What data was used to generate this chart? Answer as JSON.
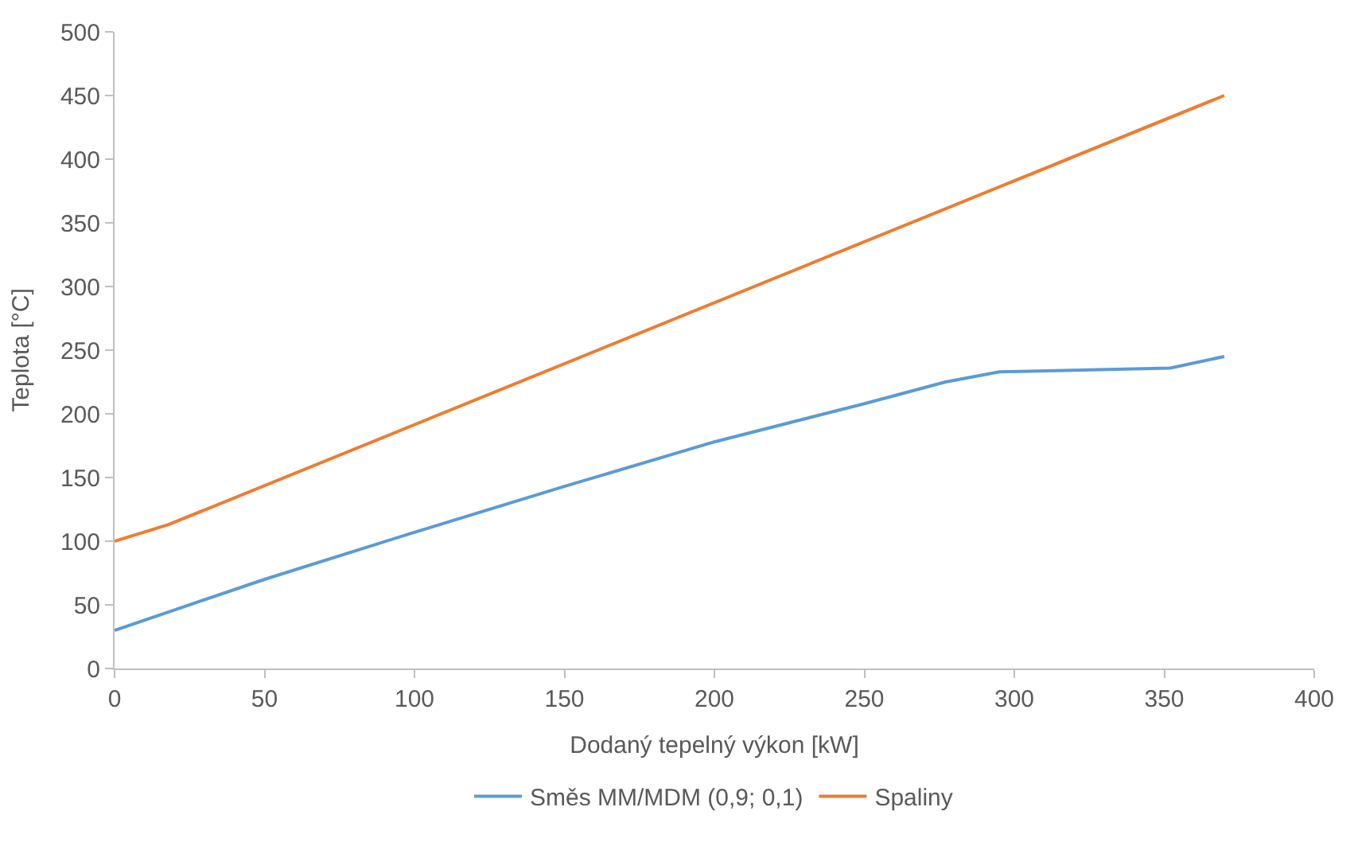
{
  "chart_data": {
    "type": "line",
    "xlabel": "Dodaný tepelný výkon [kW]",
    "ylabel": "Teplota [°C]",
    "xlim": [
      0,
      400
    ],
    "xticks": [
      0,
      50,
      100,
      150,
      200,
      250,
      300,
      350,
      400
    ],
    "ylim": [
      0,
      500
    ],
    "yticks": [
      0,
      50,
      100,
      150,
      200,
      250,
      300,
      350,
      400,
      450,
      500
    ],
    "grid": false,
    "legend": "bottom",
    "marker": "none",
    "line_style": "solid",
    "series": [
      {
        "name": "Směs MM/MDM (0,9; 0,1)",
        "color": "#5b9bd5",
        "x": [
          0,
          50,
          100,
          150,
          200,
          250,
          277,
          295,
          352,
          370
        ],
        "values": [
          30,
          70,
          107,
          143,
          178,
          208,
          225,
          233,
          236,
          245
        ]
      },
      {
        "name": "Spaliny",
        "color": "#ed7d31",
        "x": [
          0,
          18,
          370
        ],
        "values": [
          100,
          113,
          450
        ]
      }
    ]
  }
}
